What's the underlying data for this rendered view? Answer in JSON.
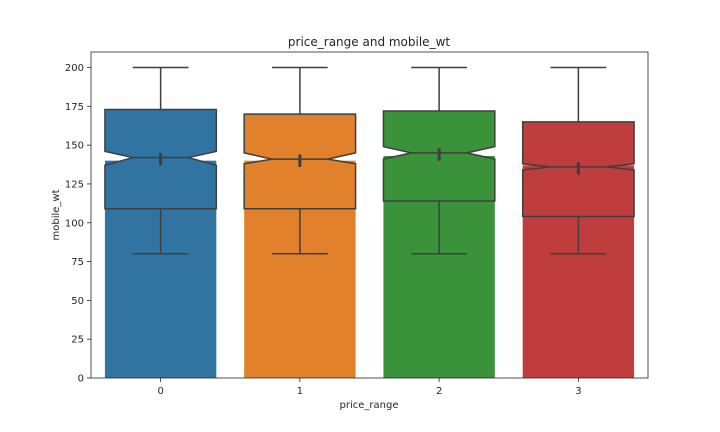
{
  "chart_data": {
    "type": "bar",
    "title": "price_range and mobile_wt",
    "xlabel": "price_range",
    "ylabel": "mobile_wt",
    "categories": [
      "0",
      "1",
      "2",
      "3"
    ],
    "ylim": [
      0,
      210
    ],
    "yticks": [
      0,
      25,
      50,
      75,
      100,
      125,
      150,
      175,
      200
    ],
    "grid": false,
    "series": [
      {
        "values": [
          140,
          140,
          143,
          137
        ],
        "colors": [
          "#3274a1",
          "#e1812c",
          "#3a923a",
          "#c03d3e"
        ]
      }
    ],
    "box_overlay": {
      "whisker_low": [
        80,
        80,
        80,
        80
      ],
      "q1": [
        109,
        109,
        114,
        104
      ],
      "median": [
        142,
        141,
        145,
        136
      ],
      "q3": [
        173,
        170,
        172,
        165
      ],
      "whisker_high": [
        200,
        200,
        200,
        200
      ],
      "notch_low": [
        137,
        138,
        141,
        134
      ],
      "notch_high": [
        146,
        145,
        149,
        138
      ]
    }
  }
}
